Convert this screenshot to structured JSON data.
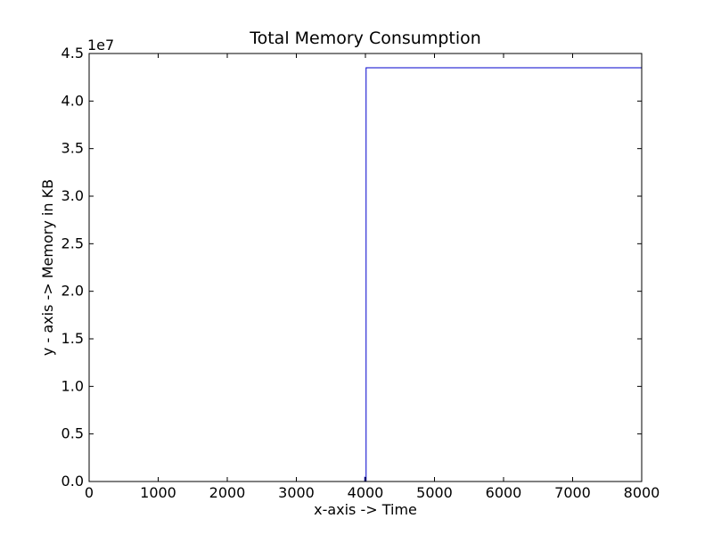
{
  "chart_data": {
    "type": "line",
    "title": "Total Memory Consumption",
    "xlabel": "x-axis -> Time",
    "ylabel": "y - axis -> Memory in KB",
    "y_offset_label": "1e7",
    "xlim": [
      0,
      8000
    ],
    "ylim": [
      0,
      45000000
    ],
    "x_ticks": [
      0,
      1000,
      2000,
      3000,
      4000,
      5000,
      6000,
      7000,
      8000
    ],
    "x_tick_labels": [
      "0",
      "1000",
      "2000",
      "3000",
      "4000",
      "5000",
      "6000",
      "7000",
      "8000"
    ],
    "y_ticks": [
      0,
      5000000,
      10000000,
      15000000,
      20000000,
      25000000,
      30000000,
      35000000,
      40000000,
      45000000
    ],
    "y_tick_labels": [
      "0.0",
      "0.5",
      "1.0",
      "1.5",
      "2.0",
      "2.5",
      "3.0",
      "3.5",
      "4.0",
      "4.5"
    ],
    "grid": false,
    "series": [
      {
        "color": "#0000cc",
        "x": [
          0,
          3990,
          3990,
          4000,
          4010,
          4010,
          8000
        ],
        "y": [
          0,
          0,
          500000,
          0,
          0,
          43500000,
          43500000
        ]
      }
    ]
  }
}
